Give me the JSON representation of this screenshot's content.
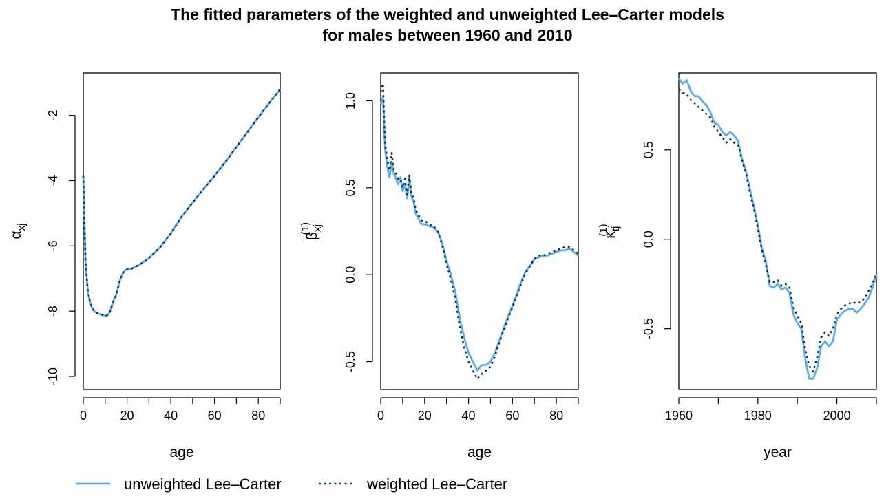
{
  "title_line1": "The fitted parameters of the weighted and unweighted Lee–Carter models",
  "title_line2": "for males between 1960 and 2010",
  "legend": {
    "unweighted_label": "unweighted Lee–Carter",
    "weighted_label": "weighted Lee–Carter",
    "unweighted_color": "#5aaee8",
    "weighted_color": "#0d3355",
    "placement": "bottom-left"
  },
  "chart_data": [
    {
      "type": "line",
      "id": "alpha",
      "xlabel": "age",
      "ylabel_symbol": "α",
      "ylabel_sub": "xj",
      "ylabel_sup": "",
      "xlim": [
        0,
        90
      ],
      "ylim": [
        -10.4,
        -0.7
      ],
      "xticks": [
        0,
        20,
        40,
        60,
        80
      ],
      "xticks_minor": [
        10,
        30,
        50,
        70,
        90
      ],
      "yticks": [
        -10,
        -8,
        -6,
        -4,
        -2
      ],
      "ytick_labels": [
        "-10",
        "-8",
        "-6",
        "-4",
        "-2"
      ],
      "grid": false,
      "series": [
        {
          "name": "unweighted Lee–Carter",
          "x": [
            0,
            1,
            2,
            3,
            4,
            5,
            6,
            7,
            8,
            9,
            10,
            11,
            12,
            13,
            14,
            15,
            16,
            17,
            18,
            19,
            20,
            22,
            25,
            28,
            30,
            35,
            40,
            45,
            50,
            55,
            60,
            65,
            70,
            75,
            80,
            85,
            90
          ],
          "y": [
            -3.85,
            -6.5,
            -7.35,
            -7.7,
            -7.9,
            -8.0,
            -8.05,
            -8.08,
            -8.1,
            -8.12,
            -8.15,
            -8.12,
            -8.05,
            -7.85,
            -7.65,
            -7.5,
            -7.25,
            -7.0,
            -6.85,
            -6.75,
            -6.72,
            -6.7,
            -6.6,
            -6.48,
            -6.37,
            -6.05,
            -5.62,
            -5.1,
            -4.67,
            -4.25,
            -3.85,
            -3.42,
            -2.97,
            -2.52,
            -2.06,
            -1.62,
            -1.2
          ]
        },
        {
          "name": "weighted Lee–Carter",
          "x": [
            0,
            1,
            2,
            3,
            4,
            5,
            6,
            7,
            8,
            9,
            10,
            11,
            12,
            13,
            14,
            15,
            16,
            17,
            18,
            19,
            20,
            22,
            25,
            28,
            30,
            35,
            40,
            45,
            50,
            55,
            60,
            65,
            70,
            75,
            80,
            85,
            90
          ],
          "y": [
            -3.85,
            -6.5,
            -7.35,
            -7.7,
            -7.9,
            -8.0,
            -8.05,
            -8.08,
            -8.1,
            -8.12,
            -8.15,
            -8.12,
            -8.05,
            -7.85,
            -7.65,
            -7.5,
            -7.25,
            -7.0,
            -6.85,
            -6.75,
            -6.72,
            -6.7,
            -6.6,
            -6.48,
            -6.37,
            -6.05,
            -5.62,
            -5.1,
            -4.67,
            -4.25,
            -3.85,
            -3.42,
            -2.97,
            -2.52,
            -2.06,
            -1.62,
            -1.2
          ]
        }
      ]
    },
    {
      "type": "line",
      "id": "beta",
      "xlabel": "age",
      "ylabel_symbol": "β",
      "ylabel_sub": "xj",
      "ylabel_sup": "(1)",
      "xlim": [
        0,
        90
      ],
      "ylim": [
        -0.66,
        1.16
      ],
      "xticks": [
        0,
        20,
        40,
        60,
        80
      ],
      "xticks_minor": [
        10,
        30,
        50,
        70,
        90
      ],
      "yticks": [
        -0.5,
        0.0,
        0.5,
        1.0
      ],
      "ytick_labels": [
        "-0.5",
        "0.0",
        "0.5",
        "1.0"
      ],
      "grid": false,
      "series": [
        {
          "name": "unweighted Lee–Carter",
          "x": [
            0,
            1,
            2,
            3,
            4,
            5,
            6,
            7,
            8,
            9,
            10,
            11,
            12,
            13,
            14,
            15,
            16,
            17,
            18,
            19,
            20,
            22,
            24,
            26,
            28,
            30,
            32,
            34,
            36,
            38,
            40,
            42,
            44,
            46,
            48,
            50,
            52,
            54,
            56,
            58,
            60,
            62,
            64,
            66,
            68,
            70,
            72,
            74,
            76,
            78,
            80,
            82,
            84,
            86,
            88,
            90
          ],
          "y": [
            0.98,
            1.02,
            0.72,
            0.62,
            0.56,
            0.65,
            0.58,
            0.55,
            0.52,
            0.56,
            0.48,
            0.52,
            0.44,
            0.55,
            0.45,
            0.42,
            0.35,
            0.33,
            0.3,
            0.29,
            0.29,
            0.28,
            0.27,
            0.25,
            0.18,
            0.08,
            0.0,
            -0.1,
            -0.25,
            -0.36,
            -0.45,
            -0.5,
            -0.55,
            -0.52,
            -0.52,
            -0.5,
            -0.45,
            -0.38,
            -0.31,
            -0.24,
            -0.18,
            -0.11,
            -0.04,
            0.02,
            0.05,
            0.09,
            0.1,
            0.11,
            0.11,
            0.12,
            0.13,
            0.14,
            0.14,
            0.15,
            0.13,
            0.11
          ]
        },
        {
          "name": "weighted Lee–Carter",
          "x": [
            0,
            1,
            2,
            3,
            4,
            5,
            6,
            7,
            8,
            9,
            10,
            11,
            12,
            13,
            14,
            15,
            16,
            17,
            18,
            19,
            20,
            22,
            24,
            26,
            28,
            30,
            32,
            34,
            36,
            38,
            40,
            42,
            44,
            46,
            48,
            50,
            52,
            54,
            56,
            58,
            60,
            62,
            64,
            66,
            68,
            70,
            72,
            74,
            76,
            78,
            80,
            82,
            84,
            86,
            88,
            90
          ],
          "y": [
            1.05,
            1.1,
            0.75,
            0.66,
            0.6,
            0.7,
            0.6,
            0.58,
            0.55,
            0.55,
            0.5,
            0.55,
            0.46,
            0.57,
            0.47,
            0.44,
            0.37,
            0.35,
            0.32,
            0.31,
            0.31,
            0.29,
            0.28,
            0.25,
            0.17,
            0.06,
            -0.03,
            -0.14,
            -0.3,
            -0.42,
            -0.5,
            -0.55,
            -0.6,
            -0.57,
            -0.55,
            -0.53,
            -0.47,
            -0.39,
            -0.32,
            -0.25,
            -0.19,
            -0.12,
            -0.05,
            0.01,
            0.05,
            0.09,
            0.11,
            0.11,
            0.12,
            0.13,
            0.14,
            0.15,
            0.16,
            0.16,
            0.14,
            0.12
          ]
        }
      ]
    },
    {
      "type": "line",
      "id": "kappa",
      "xlabel": "year",
      "ylabel_symbol": "κ",
      "ylabel_sub": "tj",
      "ylabel_sup": "(1)",
      "xlim": [
        1960,
        2010
      ],
      "ylim": [
        -0.84,
        0.93
      ],
      "xticks": [
        1960,
        1980,
        2000
      ],
      "xticks_minor": [
        1970,
        1990,
        2010
      ],
      "yticks": [
        -0.5,
        0.0,
        0.5
      ],
      "ytick_labels": [
        "-0.5",
        "0.0",
        "0.5"
      ],
      "grid": false,
      "series": [
        {
          "name": "unweighted Lee–Carter",
          "x": [
            1960,
            1961,
            1962,
            1963,
            1964,
            1965,
            1966,
            1967,
            1968,
            1969,
            1970,
            1971,
            1972,
            1973,
            1974,
            1975,
            1976,
            1977,
            1978,
            1979,
            1980,
            1981,
            1982,
            1983,
            1984,
            1985,
            1986,
            1987,
            1988,
            1989,
            1990,
            1991,
            1992,
            1993,
            1994,
            1995,
            1996,
            1997,
            1998,
            1999,
            2000,
            2001,
            2002,
            2003,
            2004,
            2005,
            2006,
            2007,
            2008,
            2009,
            2010
          ],
          "y": [
            0.9,
            0.87,
            0.89,
            0.83,
            0.8,
            0.8,
            0.77,
            0.75,
            0.71,
            0.65,
            0.64,
            0.6,
            0.58,
            0.6,
            0.58,
            0.55,
            0.45,
            0.38,
            0.28,
            0.18,
            0.08,
            -0.05,
            -0.12,
            -0.26,
            -0.27,
            -0.25,
            -0.28,
            -0.27,
            -0.3,
            -0.42,
            -0.47,
            -0.5,
            -0.67,
            -0.78,
            -0.78,
            -0.72,
            -0.6,
            -0.57,
            -0.6,
            -0.57,
            -0.45,
            -0.42,
            -0.4,
            -0.39,
            -0.39,
            -0.41,
            -0.39,
            -0.36,
            -0.33,
            -0.27,
            -0.2
          ]
        },
        {
          "name": "weighted Lee–Carter",
          "x": [
            1960,
            1961,
            1962,
            1963,
            1964,
            1965,
            1966,
            1967,
            1968,
            1969,
            1970,
            1971,
            1972,
            1973,
            1974,
            1975,
            1976,
            1977,
            1978,
            1979,
            1980,
            1981,
            1982,
            1983,
            1984,
            1985,
            1986,
            1987,
            1988,
            1989,
            1990,
            1991,
            1992,
            1993,
            1994,
            1995,
            1996,
            1997,
            1998,
            1999,
            2000,
            2001,
            2002,
            2003,
            2004,
            2005,
            2006,
            2007,
            2008,
            2009,
            2010
          ],
          "y": [
            0.84,
            0.82,
            0.81,
            0.78,
            0.76,
            0.74,
            0.72,
            0.7,
            0.68,
            0.63,
            0.6,
            0.57,
            0.54,
            0.56,
            0.54,
            0.53,
            0.44,
            0.37,
            0.26,
            0.17,
            0.06,
            -0.06,
            -0.14,
            -0.24,
            -0.24,
            -0.23,
            -0.26,
            -0.25,
            -0.27,
            -0.38,
            -0.43,
            -0.47,
            -0.62,
            -0.71,
            -0.74,
            -0.66,
            -0.55,
            -0.52,
            -0.54,
            -0.5,
            -0.42,
            -0.39,
            -0.37,
            -0.36,
            -0.35,
            -0.36,
            -0.35,
            -0.33,
            -0.29,
            -0.25,
            -0.19
          ]
        }
      ]
    }
  ]
}
